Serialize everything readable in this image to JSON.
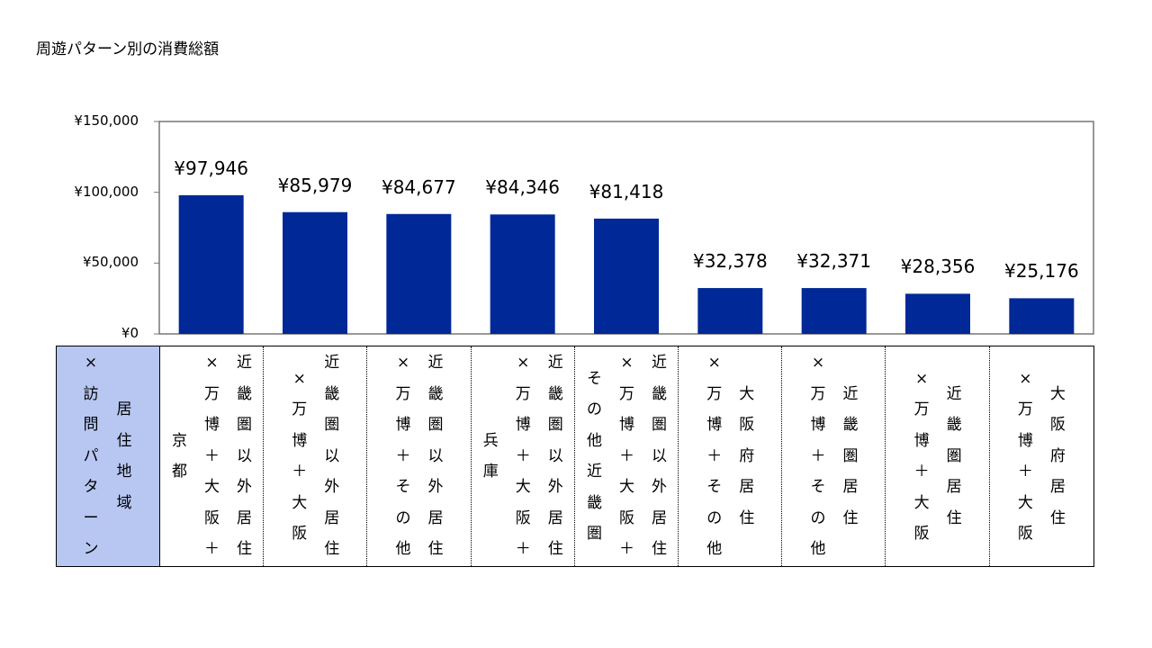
{
  "title": "周遊パターン別の消費総額",
  "chart_data": {
    "type": "bar",
    "ylim": [
      0,
      150000
    ],
    "yticks": [
      "¥0",
      "¥50,000",
      "¥100,000",
      "¥150,000"
    ],
    "ytick_values": [
      0,
      50000,
      100000,
      150000
    ],
    "bar_color": "#002896",
    "values": [
      97946,
      85979,
      84677,
      84346,
      81418,
      32378,
      32371,
      28356,
      25176
    ],
    "data_labels": [
      "¥97,946",
      "¥85,979",
      "¥84,677",
      "¥84,346",
      "¥81,418",
      "¥32,378",
      "¥32,371",
      "¥28,356",
      "¥25,176"
    ],
    "header": [
      [
        "居",
        "住",
        "地",
        "域"
      ],
      [
        "×",
        "訪",
        "問",
        "パ",
        "タ",
        "ー",
        "ン"
      ]
    ],
    "header_color": "#b8c7f2",
    "categories": [
      [
        [
          "京",
          "都"
        ],
        [
          "×",
          "万",
          "博",
          "＋",
          "大",
          "阪",
          "＋"
        ],
        [
          "近",
          "畿",
          "圏",
          "以",
          "外",
          "居",
          "住"
        ]
      ],
      [
        [
          "×",
          "万",
          "博",
          "＋",
          "大",
          "阪"
        ],
        [
          "近",
          "畿",
          "圏",
          "以",
          "外",
          "居",
          "住"
        ]
      ],
      [
        [
          "×",
          "万",
          "博",
          "＋",
          "そ",
          "の",
          "他"
        ],
        [
          "近",
          "畿",
          "圏",
          "以",
          "外",
          "居",
          "住"
        ]
      ],
      [
        [
          "兵",
          "庫"
        ],
        [
          "×",
          "万",
          "博",
          "＋",
          "大",
          "阪",
          "＋"
        ],
        [
          "近",
          "畿",
          "圏",
          "以",
          "外",
          "居",
          "住"
        ]
      ],
      [
        [
          "そ",
          "の",
          "他",
          "近",
          "畿",
          "圏"
        ],
        [
          "×",
          "万",
          "博",
          "＋",
          "大",
          "阪",
          "＋"
        ],
        [
          "近",
          "畿",
          "圏",
          "以",
          "外",
          "居",
          "住"
        ]
      ],
      [
        [
          "×",
          "万",
          "博",
          "＋",
          "そ",
          "の",
          "他"
        ],
        [
          "大",
          "阪",
          "府",
          "居",
          "住"
        ]
      ],
      [
        [
          "×",
          "万",
          "博",
          "＋",
          "そ",
          "の",
          "他"
        ],
        [
          "近",
          "畿",
          "圏",
          "居",
          "住"
        ]
      ],
      [
        [
          "×",
          "万",
          "博",
          "＋",
          "大",
          "阪"
        ],
        [
          "近",
          "畿",
          "圏",
          "居",
          "住"
        ]
      ],
      [
        [
          "×",
          "万",
          "博",
          "＋",
          "大",
          "阪"
        ],
        [
          "大",
          "阪",
          "府",
          "居",
          "住"
        ]
      ]
    ]
  }
}
